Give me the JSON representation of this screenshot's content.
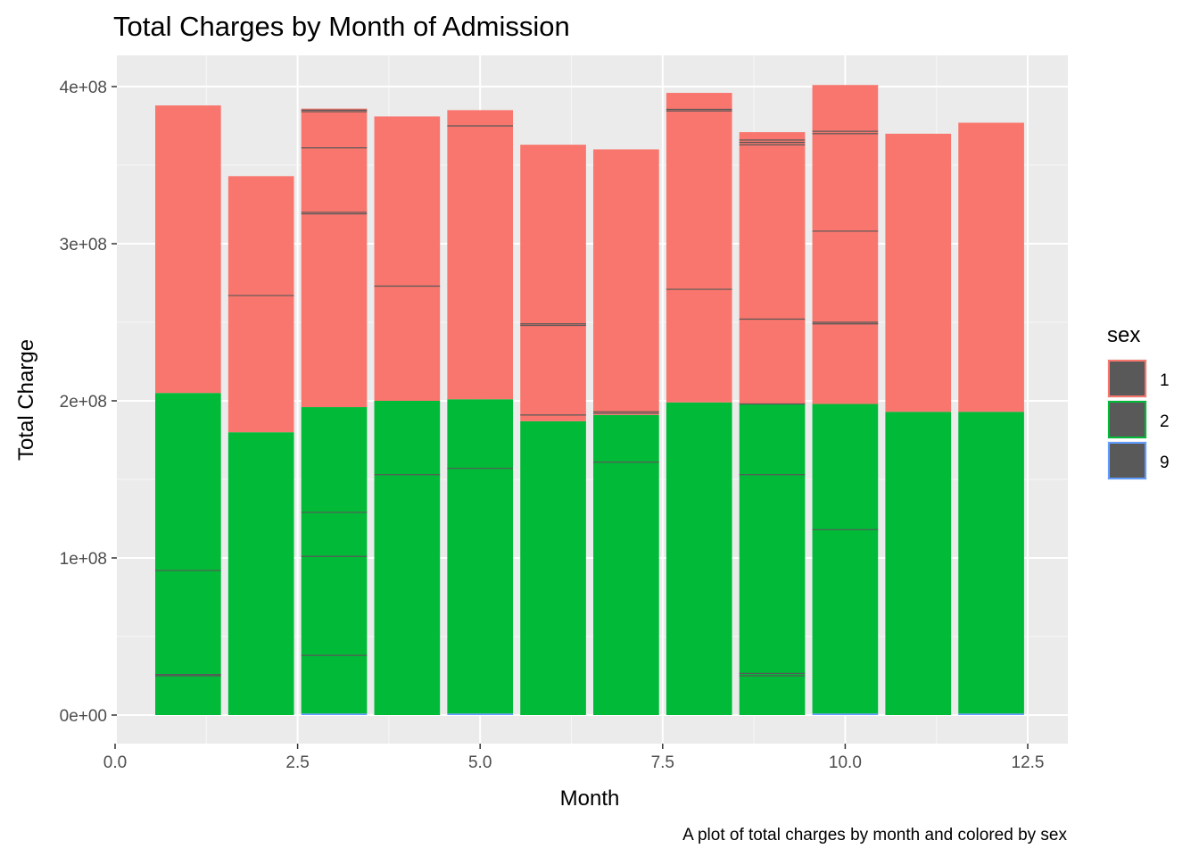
{
  "chart_data": {
    "type": "bar",
    "stacked": true,
    "title": "Total Charges by Month of Admission",
    "xlabel": "Month",
    "ylabel": "Total Charge",
    "caption": "A plot of total charges by month and colored by sex",
    "xlim": [
      0,
      12.5
    ],
    "ylim": [
      0,
      400000000
    ],
    "x_ticks": [
      0,
      2.5,
      5,
      7.5,
      10,
      12.5
    ],
    "x_tick_labels": [
      "0.0",
      "2.5",
      "5.0",
      "7.5",
      "10.0",
      "12.5"
    ],
    "y_ticks": [
      0,
      100000000,
      200000000,
      300000000,
      400000000
    ],
    "y_tick_labels": [
      "0e+00",
      "1e+08",
      "2e+08",
      "3e+08",
      "4e+08"
    ],
    "grid": true,
    "legend": {
      "title": "sex",
      "position": "right",
      "entries": [
        {
          "label": "1",
          "color": "#F8766D"
        },
        {
          "label": "2",
          "color": "#00BA38"
        },
        {
          "label": "9",
          "color": "#619CFF"
        }
      ]
    },
    "categories": [
      1,
      2,
      3,
      4,
      5,
      6,
      7,
      8,
      9,
      10,
      11,
      12
    ],
    "series": [
      {
        "name": "9",
        "color": "#619CFF",
        "values": [
          0,
          0,
          1000000,
          0,
          1000000,
          0,
          0,
          0,
          0,
          1000000,
          0,
          1000000
        ]
      },
      {
        "name": "2",
        "color": "#00BA38",
        "values": [
          205000000,
          180000000,
          195000000,
          200000000,
          200000000,
          187000000,
          191000000,
          199000000,
          198000000,
          197000000,
          193000000,
          192000000
        ]
      },
      {
        "name": "1",
        "color": "#F8766D",
        "values": [
          183000000,
          163000000,
          190000000,
          181000000,
          184000000,
          176000000,
          169000000,
          197000000,
          173000000,
          203000000,
          177000000,
          184000000
        ]
      }
    ],
    "segment_lines": [
      [
        25000000,
        25800000,
        92000000
      ],
      [
        267000000
      ],
      [
        38000000,
        101000000,
        129000000,
        319000000,
        320000000,
        361000000,
        384000000,
        385000000
      ],
      [
        153000000,
        273000000
      ],
      [
        157000000,
        375000000
      ],
      [
        191000000,
        248000000,
        249000000
      ],
      [
        161000000,
        192000000,
        193000000
      ],
      [
        271000000,
        384500000,
        385500000
      ],
      [
        25000000,
        26500000,
        153000000,
        198000000,
        252000000,
        363000000,
        364500000,
        366000000
      ],
      [
        118000000,
        249000000,
        250000000,
        308000000,
        370000000,
        371500000
      ],
      [],
      []
    ]
  }
}
